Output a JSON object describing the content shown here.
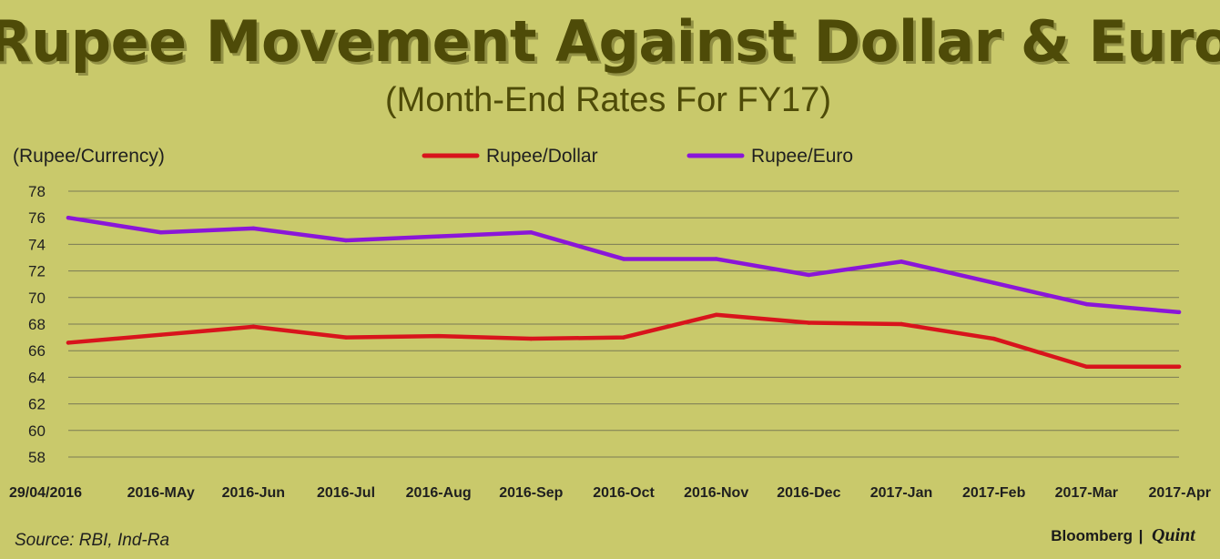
{
  "chart_data": {
    "type": "line",
    "title": "Rupee Movement Against Dollar & Euro",
    "subtitle": "(Month-End Rates For FY17)",
    "ylabel": "(Rupee/Currency)",
    "xlabel": "",
    "ylim": [
      58,
      78
    ],
    "yticks": [
      58,
      60,
      62,
      64,
      66,
      68,
      70,
      72,
      74,
      76,
      78
    ],
    "grid": true,
    "legend_position": "top-center",
    "categories": [
      "29/04/2016",
      "2016-MAy",
      "2016-Jun",
      "2016-Jul",
      "2016-Aug",
      "2016-Sep",
      "2016-Oct",
      "2016-Nov",
      "2016-Dec",
      "2017-Jan",
      "2017-Feb",
      "2017-Mar",
      "2017-Apr"
    ],
    "series": [
      {
        "name": "Rupee/Dollar",
        "color": "#d8141c",
        "values": [
          66.6,
          67.2,
          67.8,
          67.0,
          67.1,
          66.9,
          67.0,
          68.7,
          68.1,
          68.0,
          66.9,
          64.8,
          64.8
        ]
      },
      {
        "name": "Rupee/Euro",
        "color": "#8a16d8",
        "values": [
          76.0,
          74.9,
          75.2,
          74.3,
          74.6,
          74.9,
          72.9,
          72.9,
          71.7,
          72.7,
          71.1,
          69.5,
          68.9
        ]
      }
    ]
  },
  "footer": {
    "source": "Source: RBI, Ind-Ra",
    "brand_left": "Bloomberg",
    "brand_divider": "|",
    "brand_right": "Quint"
  },
  "colors": {
    "background": "#c9c96b",
    "title": "#4e4b08"
  }
}
